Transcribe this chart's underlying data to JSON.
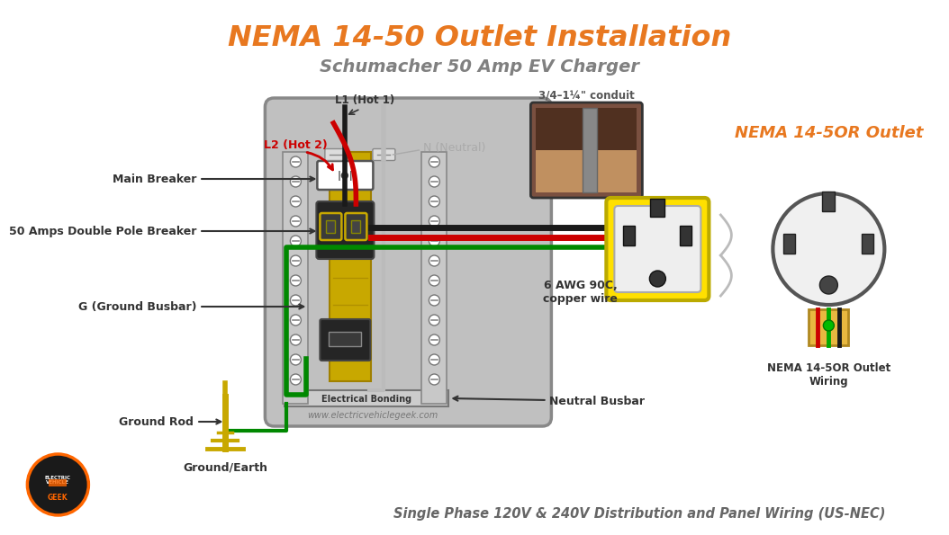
{
  "title_main": "NEMA 14-50 Outlet Installation",
  "title_sub": "Schumacher 50 Amp EV Charger",
  "title_main_color": "#E87820",
  "title_sub_color": "#808080",
  "bg_color": "#FFFFFF",
  "panel_bg": "#C0C0C0",
  "panel_border": "#888888",
  "busbar_color": "#C8A800",
  "labels": {
    "L1": "L1 (Hot 1)",
    "L2": "L2 (Hot 2)",
    "N": "N (Neutral)",
    "conduit": "3/4–1¼\" conduit",
    "main_breaker": "Main Breaker",
    "double_pole": "50 Amps Double Pole Breaker",
    "ground_busbar": "G (Ground Busbar)",
    "ground_rod": "Ground Rod",
    "ground_earth": "Ground/Earth",
    "electrical_bonding": "Electrical Bonding",
    "wire_spec": "6 AWG 90C,\ncopper wire",
    "neutral_busbar": "Neutral Busbar",
    "nema_outlet_title": "NEMA 14-5OR Outlet",
    "nema_outlet_wiring": "NEMA 14-5OR Outlet\nWiring",
    "website": "www.electricvehiclegeek.com",
    "bottom_text": "Single Phase 120V & 240V Distribution and Panel Wiring (US-NEC)"
  },
  "colors": {
    "black_wire": "#1a1a1a",
    "red_wire": "#CC0000",
    "green_wire": "#008800",
    "neutral_wire": "#BBBBBB",
    "yellow_outlet_border": "#FFE000",
    "nema_title_color": "#E87820",
    "L2_label_color": "#CC0000",
    "L1_label_color": "#333333",
    "N_label_color": "#999999",
    "arrow_color": "#111111",
    "ground_rod_color": "#C8A800"
  }
}
